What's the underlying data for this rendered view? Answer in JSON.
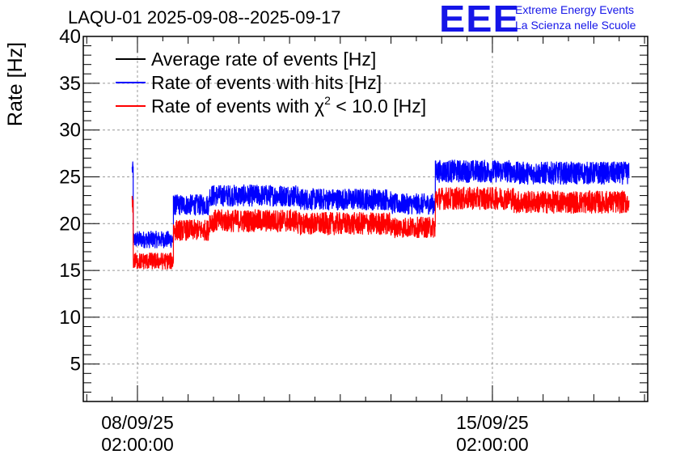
{
  "chart_data": {
    "type": "line",
    "title": "LAQU-01 2025-09-08--2025-09-17",
    "ylabel": "Rate [Hz]",
    "xlabel": "",
    "ylim": [
      1,
      40
    ],
    "yticks": [
      5,
      10,
      15,
      20,
      25,
      30,
      35,
      40
    ],
    "xlim": [
      "2025-09-07T00:22:00",
      "2025-09-18T03:30:00"
    ],
    "xticks": [
      {
        "x": "2025-09-08T02:00:00",
        "label": [
          "08/09/25",
          "02:00:00"
        ]
      },
      {
        "x": "2025-09-15T02:00:00",
        "label": [
          "15/09/25",
          "02:00:00"
        ]
      }
    ],
    "grid": true,
    "legend_position": "top-left",
    "legend": [
      {
        "label": "Average rate of events [Hz]",
        "color": "#000000"
      },
      {
        "label": "Rate of events with hits [Hz]",
        "color": "#0000ff"
      },
      {
        "label": "Rate of events with χ² < 10.0 [Hz]",
        "color": "#ff0000"
      }
    ],
    "series": [
      {
        "name": "Rate of events with hits [Hz]",
        "color": "#0000ff",
        "segments": [
          {
            "x_start": "2025-09-07T23:30:00",
            "x_end": "2025-09-08T00:00:00",
            "y_mean": 25.8,
            "band": 1.6
          },
          {
            "x_start": "2025-09-08T00:00:00",
            "x_end": "2025-09-08T19:00:00",
            "y_mean": 18.3,
            "band": 1.8
          },
          {
            "x_start": "2025-09-08T19:00:00",
            "x_end": "2025-09-09T12:00:00",
            "y_mean": 22.0,
            "band": 2.2
          },
          {
            "x_start": "2025-09-09T12:00:00",
            "x_end": "2025-09-11T06:00:00",
            "y_mean": 23.0,
            "band": 2.3
          },
          {
            "x_start": "2025-09-11T06:00:00",
            "x_end": "2025-09-13T02:00:00",
            "y_mean": 22.6,
            "band": 2.3
          },
          {
            "x_start": "2025-09-13T02:00:00",
            "x_end": "2025-09-13T23:00:00",
            "y_mean": 22.1,
            "band": 2.2
          },
          {
            "x_start": "2025-09-13T23:00:00",
            "x_end": "2025-09-15T12:00:00",
            "y_mean": 25.6,
            "band": 2.4
          },
          {
            "x_start": "2025-09-15T12:00:00",
            "x_end": "2025-09-17T18:40:00",
            "y_mean": 25.4,
            "band": 2.4
          }
        ]
      },
      {
        "name": "Rate of events with χ² < 10.0 [Hz]",
        "color": "#ff0000",
        "segments": [
          {
            "x_start": "2025-09-07T23:30:00",
            "x_end": "2025-09-08T00:00:00",
            "y_mean": 22.0,
            "band": 2.0
          },
          {
            "x_start": "2025-09-08T00:00:00",
            "x_end": "2025-09-08T19:00:00",
            "y_mean": 16.0,
            "band": 1.8
          },
          {
            "x_start": "2025-09-08T19:00:00",
            "x_end": "2025-09-09T12:00:00",
            "y_mean": 19.3,
            "band": 2.2
          },
          {
            "x_start": "2025-09-09T12:00:00",
            "x_end": "2025-09-11T06:00:00",
            "y_mean": 20.3,
            "band": 2.4
          },
          {
            "x_start": "2025-09-11T06:00:00",
            "x_end": "2025-09-13T02:00:00",
            "y_mean": 20.0,
            "band": 2.4
          },
          {
            "x_start": "2025-09-13T02:00:00",
            "x_end": "2025-09-13T23:00:00",
            "y_mean": 19.6,
            "band": 2.2
          },
          {
            "x_start": "2025-09-13T23:00:00",
            "x_end": "2025-09-15T12:00:00",
            "y_mean": 22.7,
            "band": 2.4
          },
          {
            "x_start": "2025-09-15T12:00:00",
            "x_end": "2025-09-17T18:40:00",
            "y_mean": 22.3,
            "band": 2.4
          }
        ]
      }
    ]
  },
  "logo": {
    "mark": "EEE",
    "line1": "Extreme Energy Events",
    "line2": "La Scienza nelle Scuole"
  }
}
